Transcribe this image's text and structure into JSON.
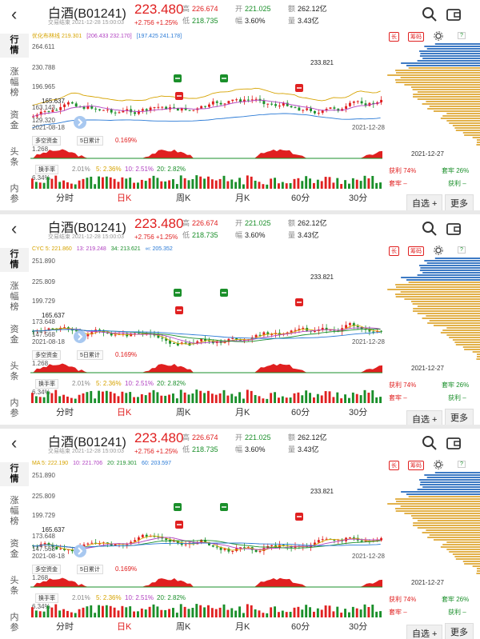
{
  "header": {
    "title": "白酒(B01241)",
    "subtitle": "交易结束 2021-12-28 15:00:03",
    "price": "223.480",
    "change": "+2.756 +1.25%",
    "high_label": "高",
    "high_value": "226.674",
    "low_label": "低",
    "low_value": "218.735",
    "open_label": "开",
    "open_value": "221.025",
    "amp_label": "幅",
    "amp_value": "3.60%",
    "amount_label": "额",
    "amount_value": "262.12亿",
    "volume_label": "量",
    "volume_value": "3.43亿"
  },
  "sidebar": {
    "items": [
      {
        "label": "行\n情"
      },
      {
        "label": "涨\n幅\n榜"
      },
      {
        "label": "资\n金"
      },
      {
        "label": "头\n条"
      },
      {
        "label": "内\n参"
      }
    ]
  },
  "right": {
    "tag1": "长",
    "tag2": "筹码",
    "help": "?"
  },
  "indicator": {
    "dropdown": "多空资金",
    "period_dropdown": "5日累计",
    "value": "0.169%",
    "value2": "1.268"
  },
  "turnover": {
    "dropdown": "换手率",
    "v1": "2.01%",
    "v5": "5: 2.36%",
    "v10": "10: 2.51%",
    "v20": "20: 2.82%",
    "axis": "6.34%"
  },
  "chip": {
    "date": "2021-12-27",
    "profit_label": "获利 74%",
    "trap_label": "套牢 26%",
    "trap_dash": "套牢 –",
    "profit_dash": "获利 –"
  },
  "tabs": [
    "分时",
    "日K",
    "周K",
    "月K",
    "60分",
    "30分"
  ],
  "buttons": {
    "watch": "自选 +",
    "more": "更多"
  },
  "panels": [
    {
      "ma": [
        "优化布林线 219.301",
        "[206.433 232.170]",
        "[197.425 241.178]"
      ],
      "ma_colors": [
        "#d6a300",
        "#b040c0",
        "#2a7ad6"
      ],
      "y_top": "264.611",
      "y2": "230.788",
      "y3": "196.965",
      "y_low": "165.637",
      "y4": "163.143",
      "y_bot": "129.320",
      "start_date": "2021-08-18",
      "end_date": "2021-12-28",
      "peak": "233.821"
    },
    {
      "ma": [
        "CYC 5: 221.860",
        "13: 219.248",
        "34: 213.621",
        "∞: 205.352"
      ],
      "ma_colors": [
        "#d6a300",
        "#b040c0",
        "#1a8f2a",
        "#2a7ad6"
      ],
      "y_top": "251.890",
      "y2": "225.809",
      "y3": "199.729",
      "y_low": "165.637",
      "y4": "173.648",
      "y_bot": "147.568",
      "start_date": "2021-08-18",
      "end_date": "2021-12-28",
      "peak": "233.821"
    },
    {
      "ma": [
        "MA 5: 222.190",
        "10: 221.706",
        "20: 219.301",
        "60: 203.597"
      ],
      "ma_colors": [
        "#d6a300",
        "#b040c0",
        "#1a8f2a",
        "#2a7ad6"
      ],
      "y_top": "251.890",
      "y2": "225.809",
      "y3": "199.729",
      "y_low": "165.637",
      "y4": "173.648",
      "y_bot": "147.568",
      "start_date": "2021-08-18",
      "end_date": "2021-12-28",
      "peak": "233.821"
    }
  ]
}
